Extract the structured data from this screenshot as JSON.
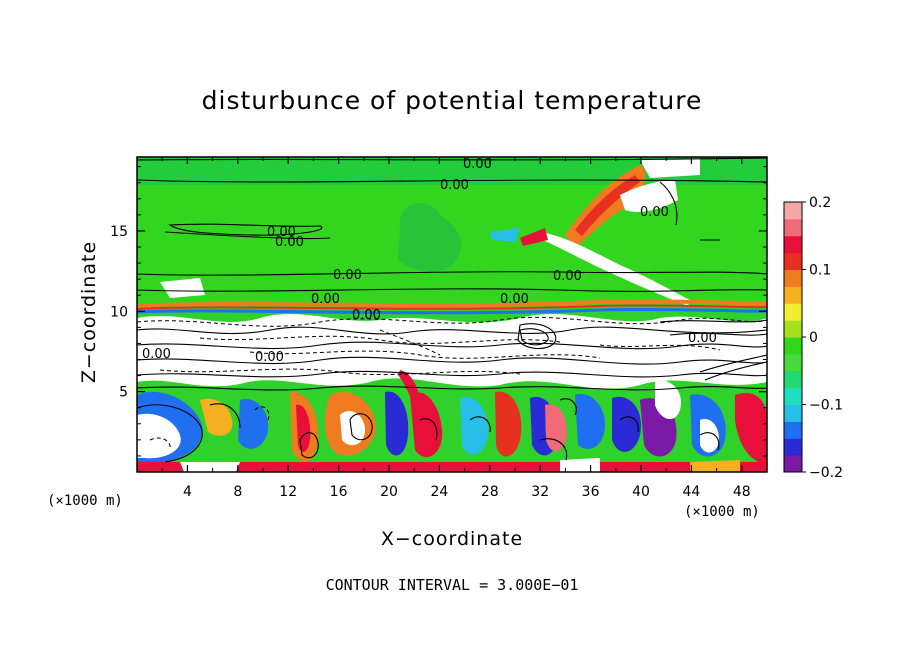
{
  "chart_data": {
    "type": "heatmap",
    "title": "disturbunce of potential temperature",
    "xlabel": "X−coordinate",
    "ylabel": "Z−coordinate",
    "x_unit": "(×1000 m)",
    "xlim": [
      0,
      50
    ],
    "ylim": [
      0,
      19.6
    ],
    "x_ticks": [
      "4",
      "8",
      "12",
      "16",
      "20",
      "24",
      "28",
      "32",
      "36",
      "40",
      "44",
      "48"
    ],
    "y_ticks": [
      "5",
      "10",
      "15"
    ],
    "colorbar": {
      "range": [
        -0.2,
        0.2
      ],
      "tick_labels": [
        "0.2",
        "0.1",
        "0",
        "−0.1",
        "−0.2"
      ],
      "colors": [
        "#7a1aa6",
        "#2b2bd6",
        "#1f6ff0",
        "#27bfe8",
        "#1ee0c0",
        "#22d870",
        "#4ad93a",
        "#30d818",
        "#a8e020",
        "#f0f030",
        "#f4b020",
        "#f07a20",
        "#e83020",
        "#e8103a",
        "#f06a7a",
        "#f5a6a6"
      ]
    },
    "annotations": [
      "0.00"
    ],
    "footer": "CONTOUR INTERVAL = 3.000E−01"
  }
}
